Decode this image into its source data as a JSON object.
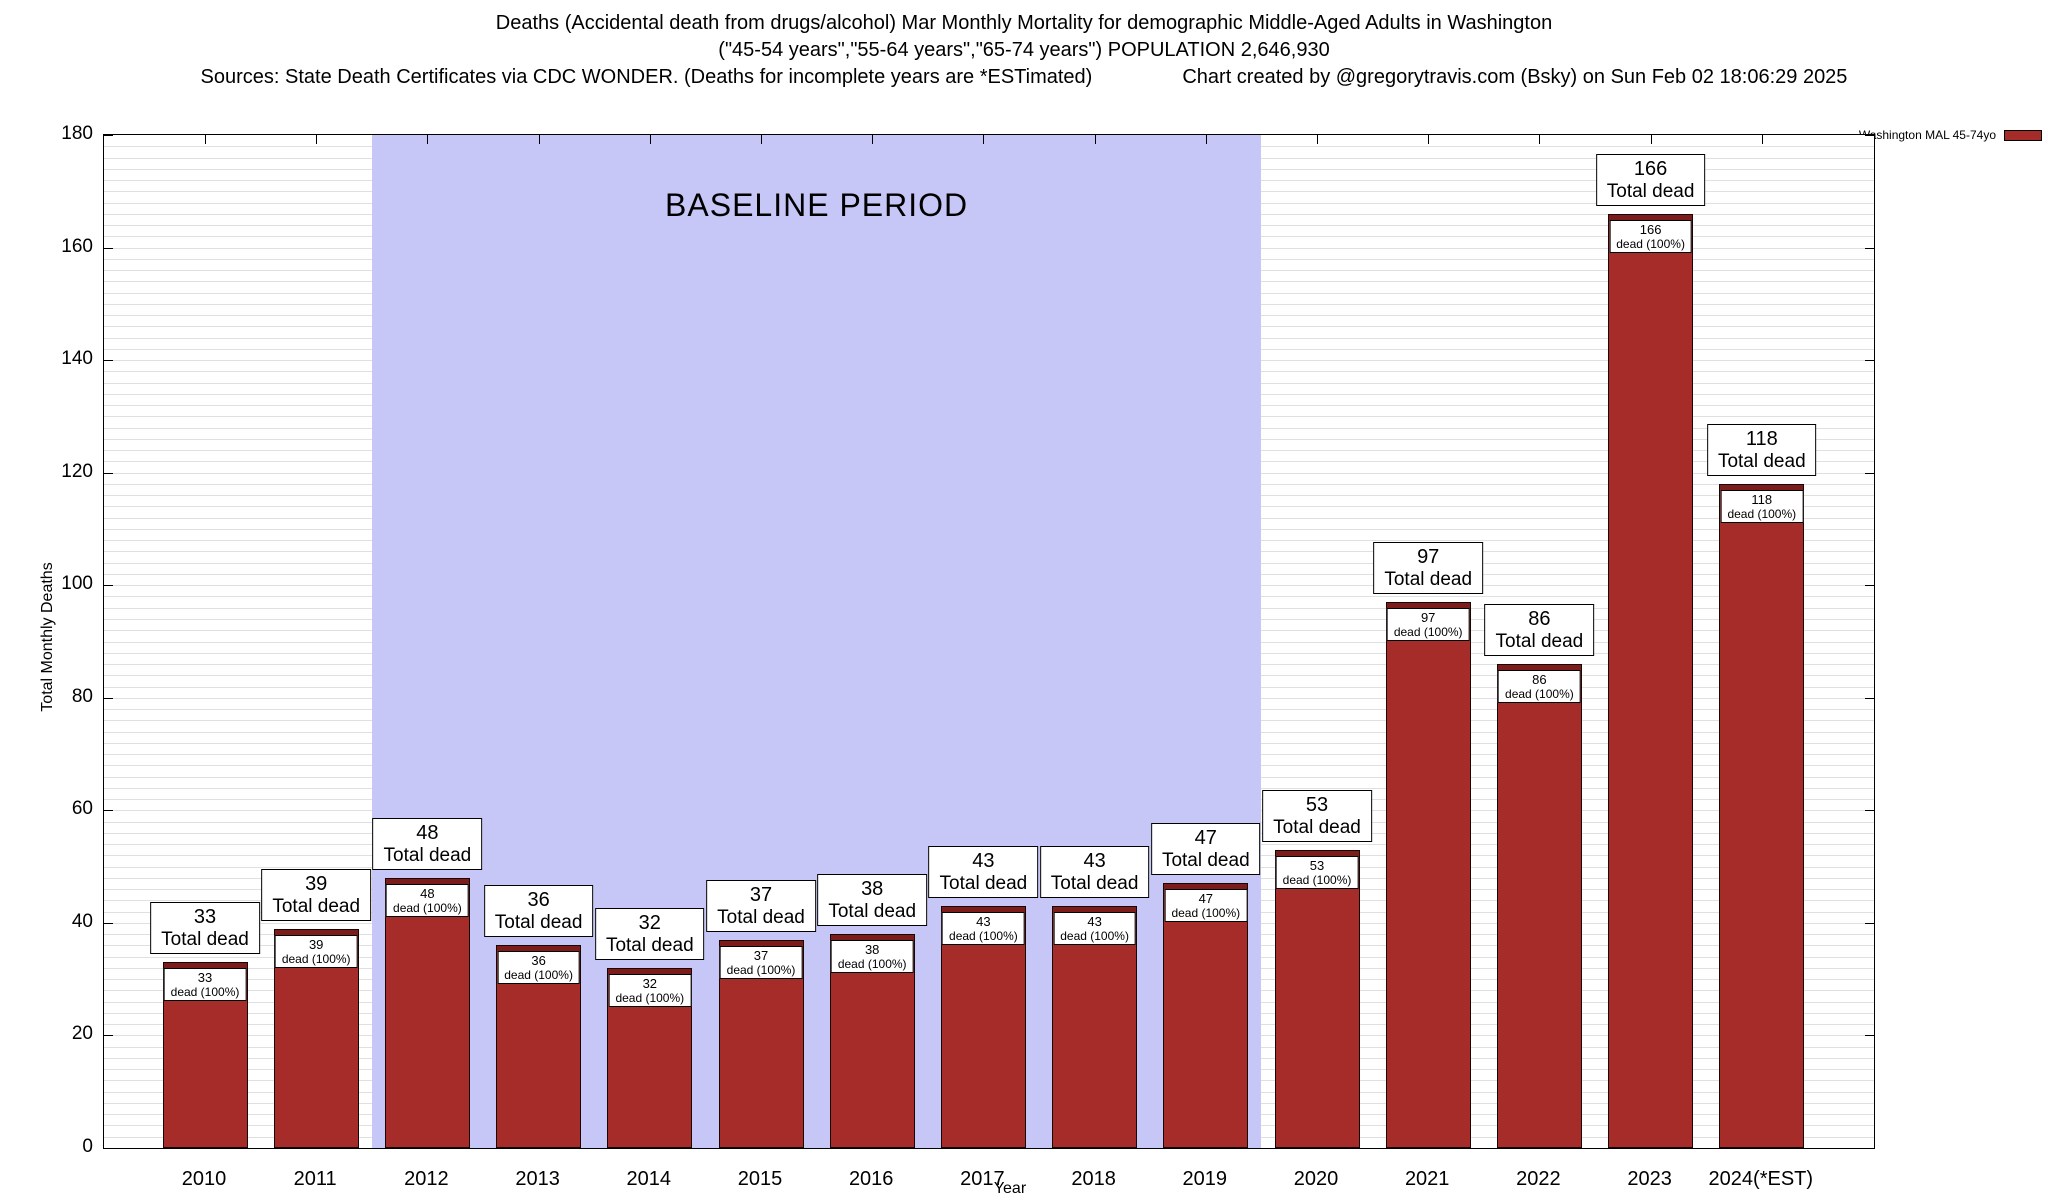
{
  "title": {
    "line1": "Deaths (Accidental death from drugs/alcohol) Mar Monthly Mortality for demographic Middle-Aged Adults in Washington",
    "line2": "(\"45-54 years\",\"55-64 years\",\"65-74 years\") POPULATION 2,646,930",
    "line3_left": "Sources: State Death Certificates via CDC WONDER. (Deaths for incomplete years are *ESTimated)",
    "line3_right": "Chart created by @gregorytravis.com (Bsky) on Sun Feb 02 18:06:29 2025"
  },
  "legend": {
    "label": "Washington MAL 45-74yo",
    "color": "#a62c2a",
    "position": "top-right"
  },
  "baseline": {
    "label": "BASELINE PERIOD",
    "start_index": 2,
    "end_index": 9,
    "color": "#c7c7f7"
  },
  "chart_data": {
    "type": "bar",
    "title": "Deaths (Accidental death from drugs/alcohol) Mar Monthly Mortality for demographic Middle-Aged Adults in Washington",
    "xlabel": "Year",
    "ylabel": "Total Monthly Deaths",
    "ylim": [
      0,
      180
    ],
    "yticks": [
      0,
      20,
      40,
      60,
      80,
      100,
      120,
      140,
      160,
      180
    ],
    "minor_grid_step": 2,
    "grid": true,
    "categories": [
      "2010",
      "2011",
      "2012",
      "2013",
      "2014",
      "2015",
      "2016",
      "2017",
      "2018",
      "2019",
      "2020",
      "2021",
      "2022",
      "2023",
      "2024(*EST)"
    ],
    "values": [
      33,
      39,
      48,
      36,
      32,
      37,
      38,
      43,
      43,
      47,
      53,
      97,
      86,
      166,
      118
    ],
    "bar_color": "#a62c2a",
    "bar_cap_color": "#7c1d1b",
    "big_label_suffix": "Total dead",
    "small_label_suffix": "dead (100%)"
  }
}
